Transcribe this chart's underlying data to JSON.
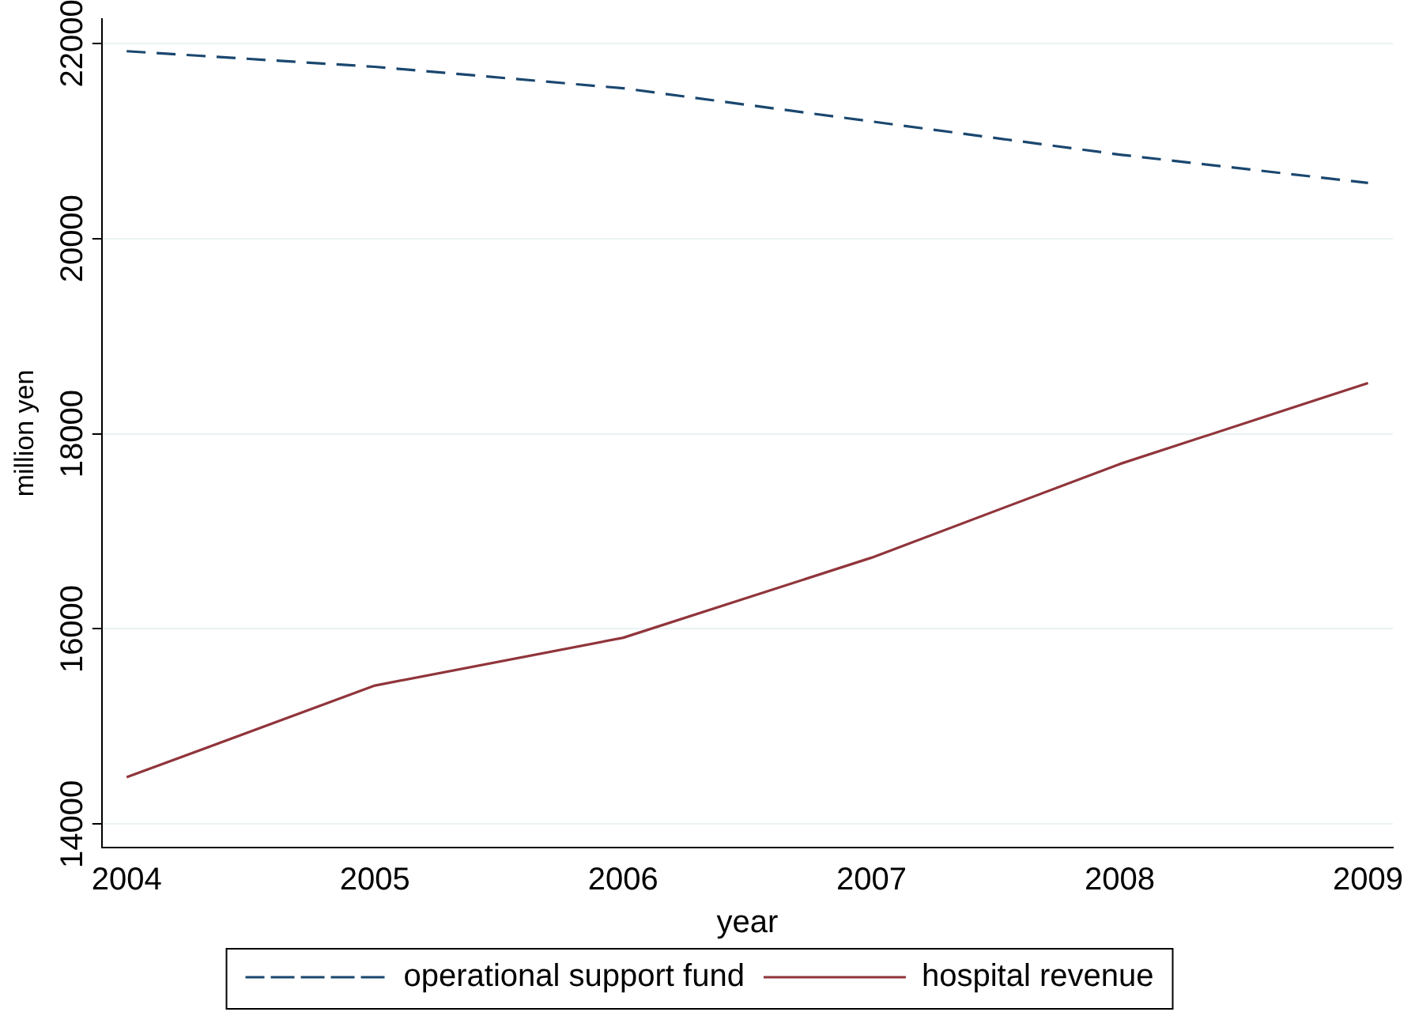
{
  "chart_data": {
    "type": "line",
    "xlabel": "year",
    "ylabel": "million yen",
    "x": [
      2004,
      2005,
      2006,
      2007,
      2008,
      2009
    ],
    "series": [
      {
        "name": "operational support fund",
        "color": "#1a476f",
        "line_style": "dashed",
        "values": [
          21920,
          21760,
          21540,
          21200,
          20860,
          20570
        ]
      },
      {
        "name": "hospital revenue",
        "color": "#90353b",
        "line_style": "solid",
        "values": [
          14480,
          15420,
          15910,
          16730,
          17690,
          18520
        ]
      }
    ],
    "xlim": [
      2003.9,
      2009.1
    ],
    "xticks": [
      2004,
      2005,
      2006,
      2007,
      2008,
      2009
    ],
    "ylim": [
      13760,
      22250
    ],
    "yticks": [
      14000,
      16000,
      18000,
      20000,
      22000
    ],
    "grid": "y",
    "legend": "bottom",
    "marker": "none"
  }
}
